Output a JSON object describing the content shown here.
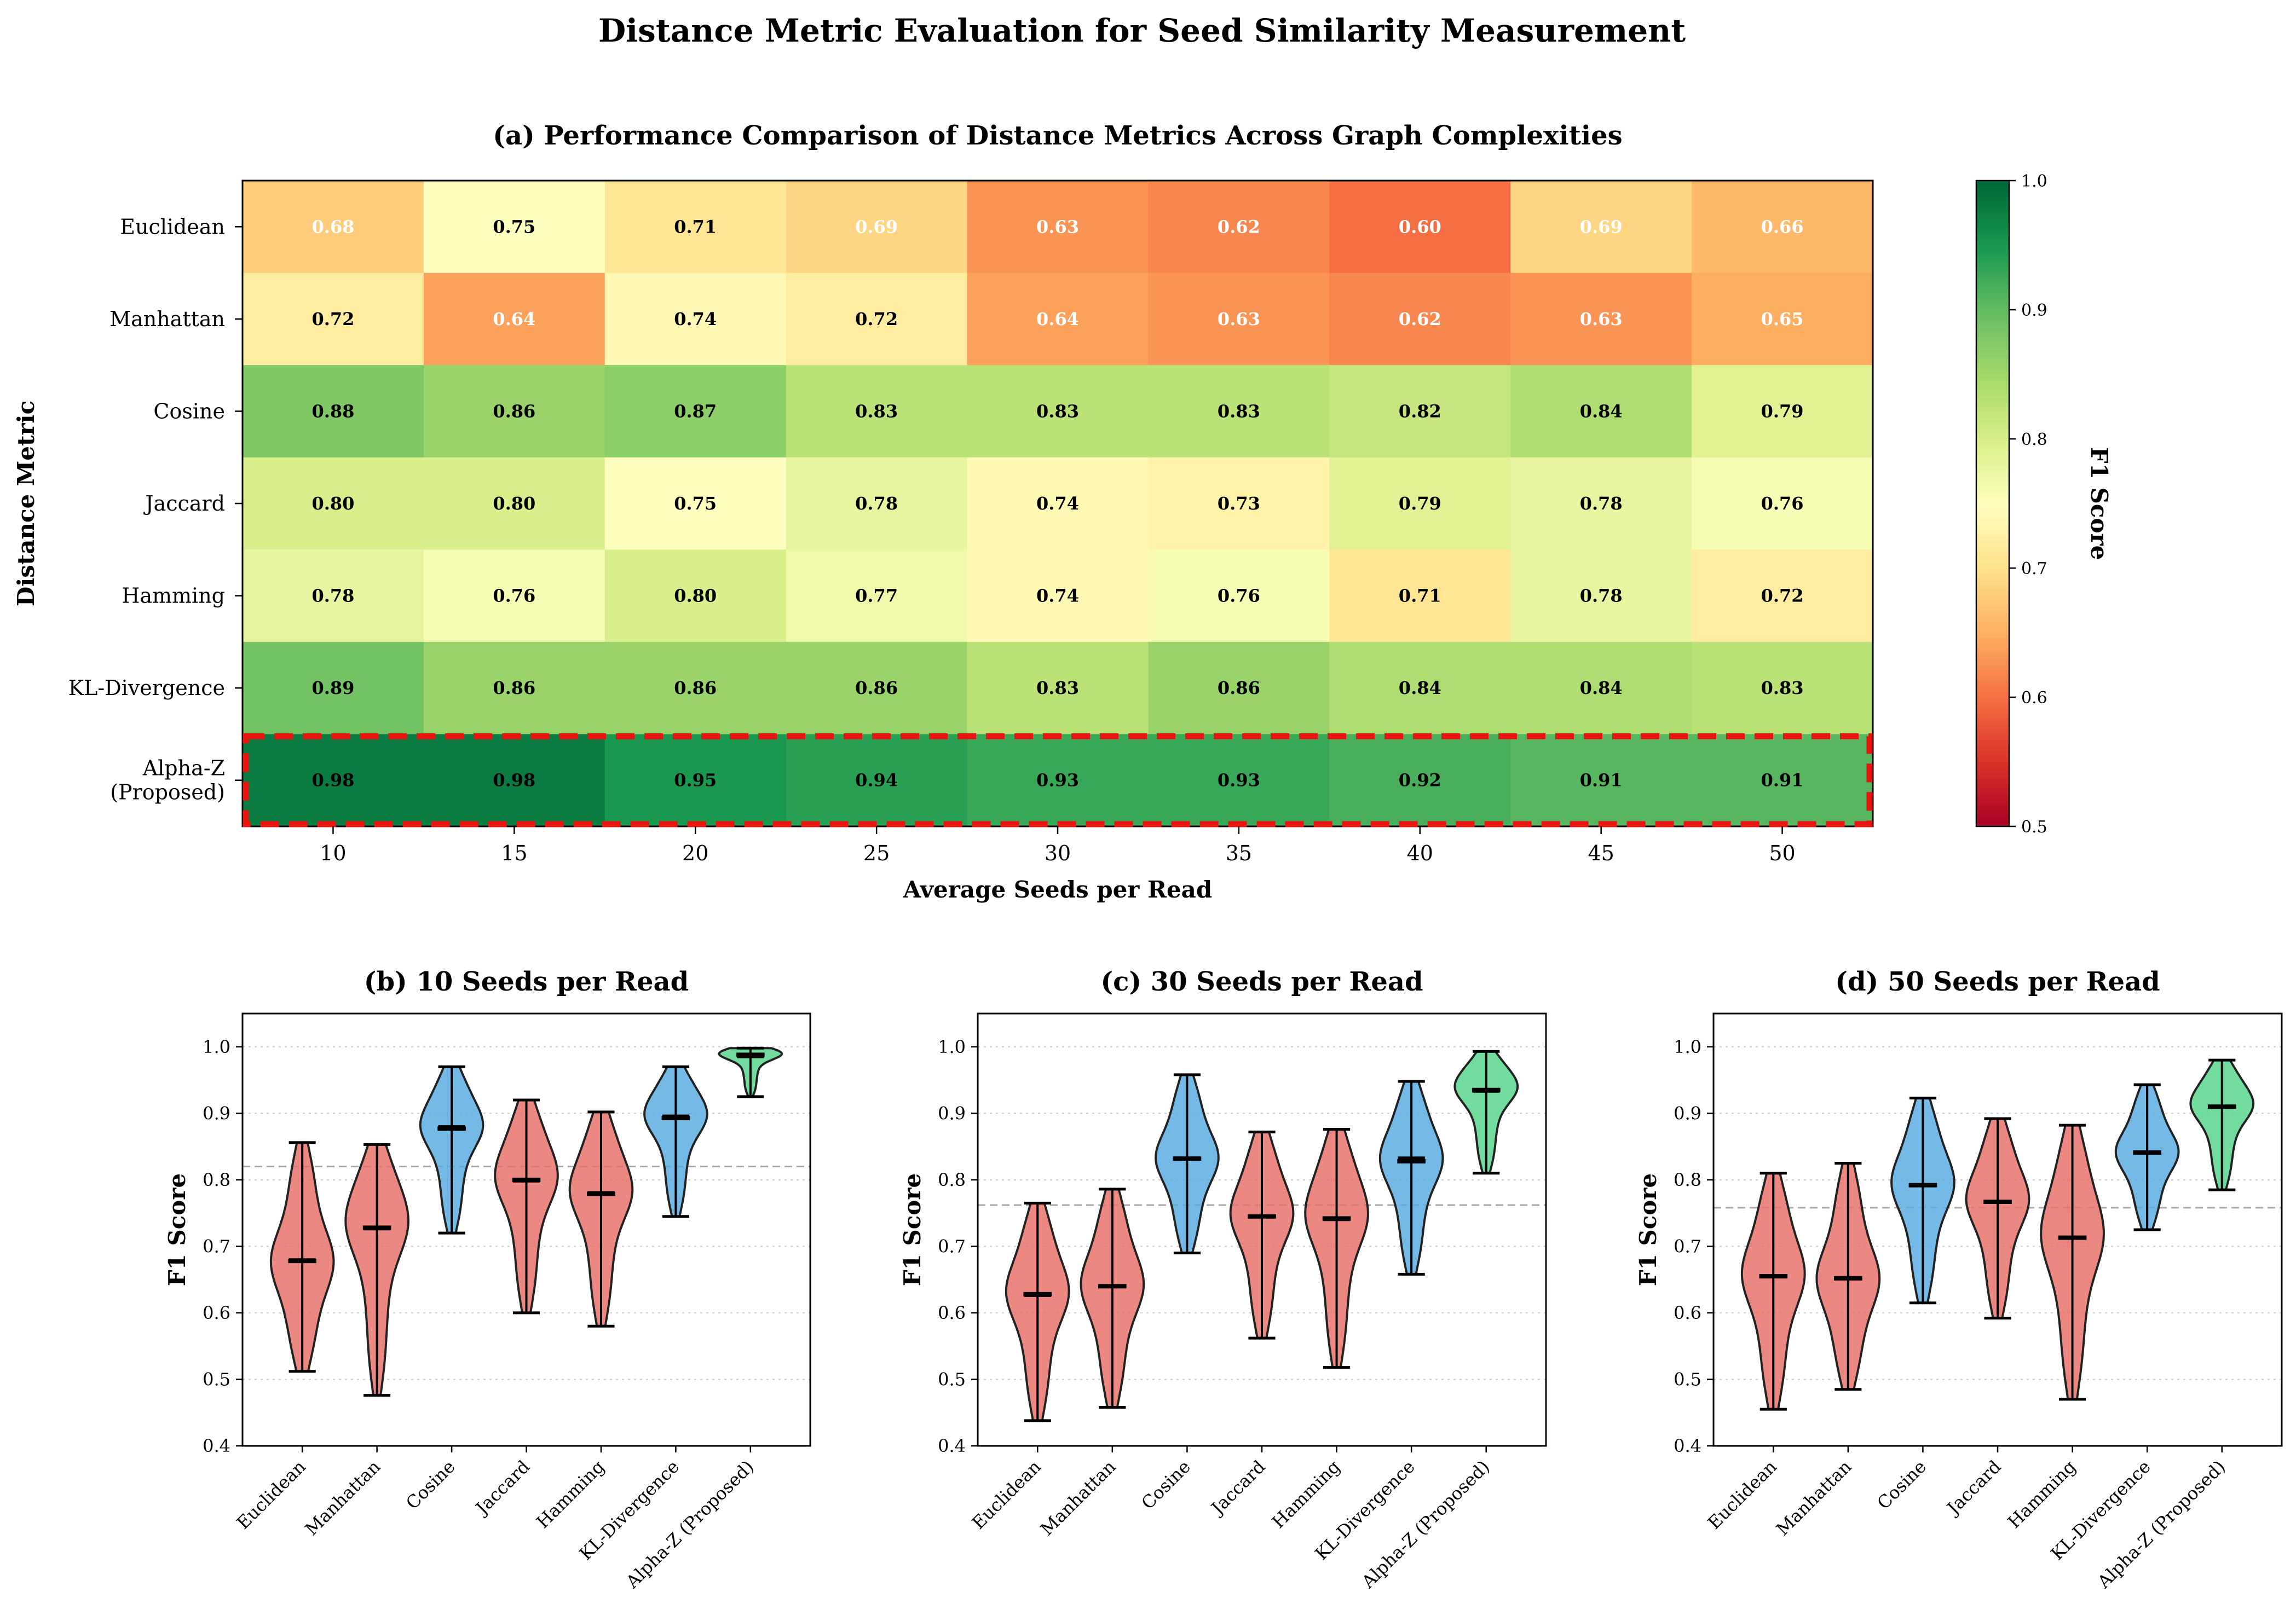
{
  "title": "Distance Metric Evaluation for Seed Similarity Measurement",
  "chart_data": [
    {
      "type": "heatmap",
      "title": "(a) Performance Comparison of Distance Metrics Across Graph Complexities",
      "xlabel": "Average Seeds per Read",
      "ylabel": "Distance Metric",
      "x": [
        "10",
        "15",
        "20",
        "25",
        "30",
        "35",
        "40",
        "45",
        "50"
      ],
      "rows": [
        "Euclidean",
        "Manhattan",
        "Cosine",
        "Jaccard",
        "Hamming",
        "KL-Divergence",
        "Alpha-Z\n(Proposed)"
      ],
      "values": [
        [
          0.68,
          0.75,
          0.71,
          0.69,
          0.63,
          0.62,
          0.6,
          0.69,
          0.66
        ],
        [
          0.72,
          0.64,
          0.74,
          0.72,
          0.64,
          0.63,
          0.62,
          0.63,
          0.65
        ],
        [
          0.88,
          0.86,
          0.87,
          0.83,
          0.83,
          0.83,
          0.82,
          0.84,
          0.79
        ],
        [
          0.8,
          0.8,
          0.75,
          0.78,
          0.74,
          0.73,
          0.79,
          0.78,
          0.76
        ],
        [
          0.78,
          0.76,
          0.8,
          0.77,
          0.74,
          0.76,
          0.71,
          0.78,
          0.72
        ],
        [
          0.89,
          0.86,
          0.86,
          0.86,
          0.83,
          0.86,
          0.84,
          0.84,
          0.83
        ],
        [
          0.98,
          0.98,
          0.95,
          0.94,
          0.93,
          0.93,
          0.92,
          0.91,
          0.91
        ]
      ],
      "highlight_row": "Alpha-Z\n(Proposed)",
      "highlight_color": "#e8140f",
      "colorbar": {
        "label": "F1 Score",
        "min": 0.5,
        "max": 1.0,
        "ticks": [
          "0.5",
          "0.6",
          "0.7",
          "0.8",
          "0.9",
          "1.0"
        ],
        "colormap": "RdYlGn"
      }
    },
    {
      "type": "violin",
      "title": "(b) 10 Seeds per Read",
      "ylabel": "F1 Score",
      "ylim": [
        0.4,
        1.05
      ],
      "yticks": [
        "0.4",
        "0.5",
        "0.6",
        "0.7",
        "0.8",
        "0.9",
        "1.0"
      ],
      "categories": [
        "Euclidean",
        "Manhattan",
        "Cosine",
        "Jaccard",
        "Hamming",
        "KL-Divergence",
        "Alpha-Z (Proposed)"
      ],
      "min": [
        0.512,
        0.476,
        0.72,
        0.6,
        0.58,
        0.745,
        0.925
      ],
      "max": [
        0.856,
        0.853,
        0.97,
        0.92,
        0.902,
        0.97,
        0.998
      ],
      "median": [
        0.678,
        0.728,
        0.877,
        0.8,
        0.779,
        0.893,
        0.988
      ],
      "mean": [
        0.68,
        0.726,
        0.88,
        0.798,
        0.781,
        0.896,
        0.985
      ],
      "reference_line": 0.82
    },
    {
      "type": "violin",
      "title": "(c) 30 Seeds per Read",
      "ylabel": "F1 Score",
      "ylim": [
        0.4,
        1.05
      ],
      "yticks": [
        "0.4",
        "0.5",
        "0.6",
        "0.7",
        "0.8",
        "0.9",
        "1.0"
      ],
      "categories": [
        "Euclidean",
        "Manhattan",
        "Cosine",
        "Jaccard",
        "Hamming",
        "KL-Divergence",
        "Alpha-Z (Proposed)"
      ],
      "min": [
        0.438,
        0.458,
        0.69,
        0.562,
        0.518,
        0.658,
        0.81
      ],
      "max": [
        0.765,
        0.786,
        0.958,
        0.872,
        0.876,
        0.948,
        0.993
      ],
      "median": [
        0.628,
        0.64,
        0.832,
        0.745,
        0.742,
        0.828,
        0.935
      ],
      "mean": [
        0.626,
        0.641,
        0.832,
        0.744,
        0.74,
        0.833,
        0.933
      ],
      "reference_line": 0.762
    },
    {
      "type": "violin",
      "title": "(d) 50 Seeds per Read",
      "ylabel": "F1 Score",
      "ylim": [
        0.4,
        1.05
      ],
      "yticks": [
        "0.4",
        "0.5",
        "0.6",
        "0.7",
        "0.8",
        "0.9",
        "1.0"
      ],
      "categories": [
        "Euclidean",
        "Manhattan",
        "Cosine",
        "Jaccard",
        "Hamming",
        "KL-Divergence",
        "Alpha-Z (Proposed)"
      ],
      "min": [
        0.455,
        0.485,
        0.615,
        0.592,
        0.47,
        0.725,
        0.785
      ],
      "max": [
        0.81,
        0.825,
        0.923,
        0.892,
        0.882,
        0.943,
        0.98
      ],
      "median": [
        0.655,
        0.652,
        0.792,
        0.767,
        0.713,
        0.841,
        0.91
      ],
      "mean": [
        0.655,
        0.652,
        0.792,
        0.767,
        0.713,
        0.841,
        0.91
      ],
      "reference_line": 0.758
    }
  ],
  "colors": {
    "low": "#e8736b",
    "mid": "#5dade2",
    "high": "#58d68d"
  }
}
